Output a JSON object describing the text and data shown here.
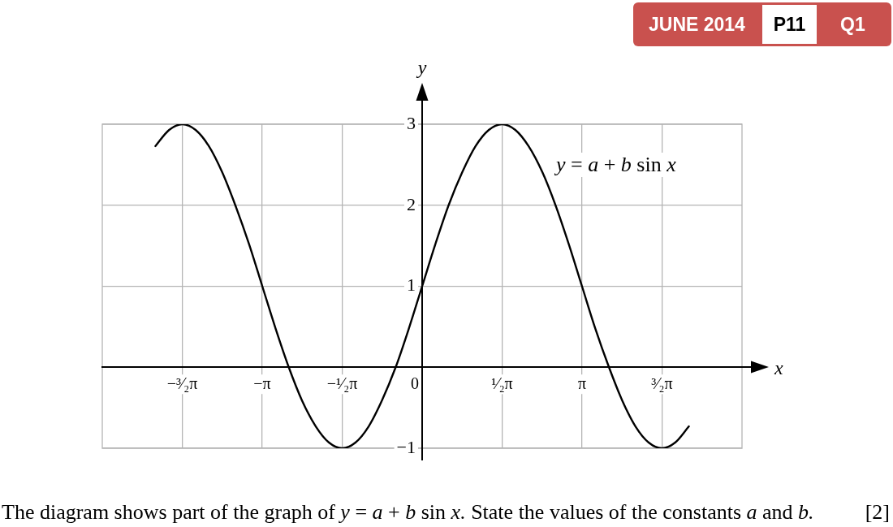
{
  "chart_data": {
    "type": "line",
    "xlabel": "x",
    "ylabel": "y",
    "annotations": [
      "JUNE 2014",
      "P11",
      "Q1",
      "The diagram shows part of the graph of y = a + b sin x. State the values of the constants a and b.",
      "[2]"
    ],
    "x": [
      -5.24,
      -4.97,
      -4.71,
      -4.45,
      -4.19,
      -3.93,
      -3.67,
      -3.4,
      -3.14,
      -2.88,
      -2.62,
      -2.36,
      -2.09,
      -1.83,
      -1.57,
      -1.31,
      -1.05,
      -0.79,
      -0.52,
      -0.26,
      0,
      0.26,
      0.52,
      0.79,
      1.05,
      1.31,
      1.57,
      1.83,
      2.09,
      2.36,
      2.62,
      2.88,
      3.14,
      3.4,
      3.67,
      3.93,
      4.19,
      4.45,
      4.71,
      4.97,
      5.24
    ],
    "series": [
      {
        "name": "y = a + b sin x",
        "color": "#000000",
        "values": [
          2.73,
          2.93,
          3,
          2.93,
          2.73,
          2.41,
          2,
          1.52,
          1,
          0.48,
          0,
          -0.41,
          -0.73,
          -0.93,
          -1,
          -0.93,
          -0.73,
          -0.41,
          0,
          0.48,
          1,
          1.52,
          2,
          2.41,
          2.73,
          2.93,
          3,
          2.93,
          2.73,
          2.41,
          2,
          1.52,
          1,
          0.48,
          0,
          -0.41,
          -0.73,
          -0.93,
          -1,
          -0.93,
          -0.73
        ]
      }
    ],
    "xlim": [
      -6.283,
      6.283
    ],
    "ylim": [
      -1,
      3
    ],
    "xticks": [
      {
        "value": -4.712,
        "label": "−³⁄₂π"
      },
      {
        "value": -3.142,
        "label": "−π"
      },
      {
        "value": -1.571,
        "label": "−¹⁄₂π"
      },
      0,
      {
        "value": 1.571,
        "label": "¹⁄₂π"
      },
      {
        "value": 3.142,
        "label": "π"
      },
      {
        "value": 4.712,
        "label": "³⁄₂π"
      }
    ],
    "yticks": [
      {
        "value": -1,
        "label": "−1"
      },
      1,
      2,
      3
    ],
    "grid": true,
    "marker": "none"
  }
}
